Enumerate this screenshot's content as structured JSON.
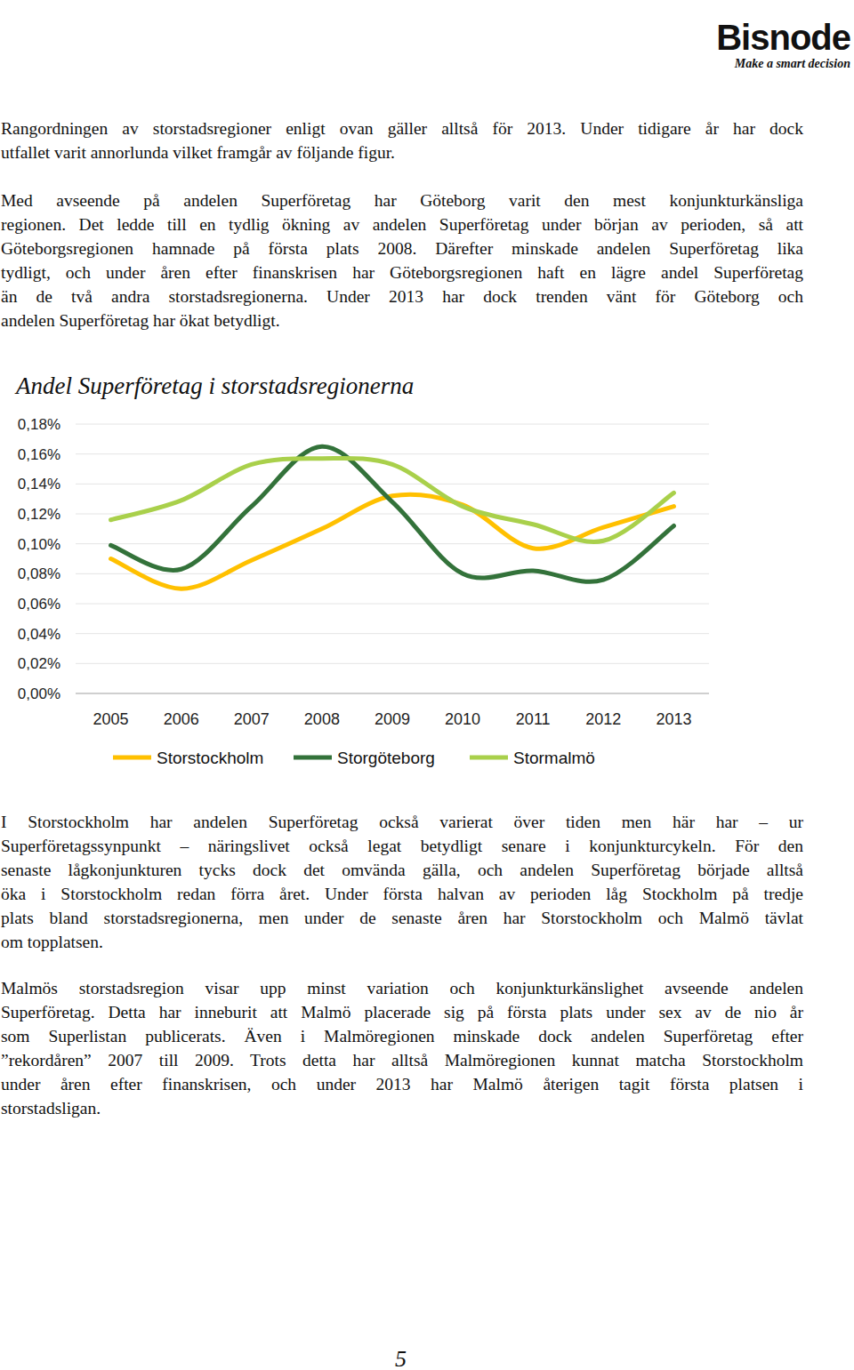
{
  "header": {
    "logo": "Bisnode",
    "tagline": "Make a smart decision"
  },
  "paragraphs": [
    [
      "Rangordningen av storstadsregioner enligt ovan gäller alltså för 2013. Under tidigare år har dock",
      "utfallet varit annorlunda vilket framgår av följande figur."
    ],
    [
      "Med avseende på andelen Superföretag har Göteborg varit den mest konjunkturkänsliga",
      "regionen. Det ledde till en tydlig ökning av andelen Superföretag under början av perioden, så att",
      "Göteborgsregionen hamnade på första plats 2008. Därefter minskade andelen Superföretag lika",
      "tydligt, och under åren efter finanskrisen har Göteborgsregionen haft en lägre andel Superföretag",
      "än de två andra storstadsregionerna. Under 2013 har dock trenden vänt för Göteborg och",
      "andelen Superföretag har ökat betydligt."
    ],
    [
      "I Storstockholm har andelen Superföretag också varierat över tiden men här har – ur",
      "Superföretagssynpunkt – näringslivet också legat betydligt senare i konjunkturcykeln. För den",
      "senaste lågkonjunkturen tycks dock det omvända gälla, och andelen Superföretag började alltså",
      "öka i Storstockholm redan förra året. Under första halvan av perioden låg Stockholm på tredje",
      "plats bland storstadsregionerna, men under de senaste åren har Storstockholm och Malmö tävlat",
      "om topplatsen."
    ],
    [
      "Malmös storstadsregion visar upp minst variation och konjunkturkänslighet avseende andelen",
      "Superföretag. Detta har inneburit att Malmö placerade sig på första plats under sex av de nio år",
      "som Superlistan publicerats. Även i Malmöregionen minskade dock andelen Superföretag efter",
      "”rekordåren” 2007 till 2009. Trots detta har alltså Malmöregionen kunnat matcha Storstockholm",
      "under åren efter finanskrisen, och under 2013 har Malmö återigen tagit första platsen i",
      "storstadsligan."
    ]
  ],
  "chart_data": {
    "type": "line",
    "title": "Andel Superföretag i storstadsregionerna",
    "categories": [
      "2005",
      "2006",
      "2007",
      "2008",
      "2009",
      "2010",
      "2011",
      "2012",
      "2013"
    ],
    "series": [
      {
        "name": "Storstockholm",
        "color": "#ffc000",
        "values": [
          0.09,
          0.07,
          0.089,
          0.11,
          0.132,
          0.126,
          0.097,
          0.111,
          0.125
        ]
      },
      {
        "name": "Storgöteborg",
        "color": "#33723a",
        "values": [
          0.099,
          0.083,
          0.125,
          0.165,
          0.128,
          0.08,
          0.082,
          0.076,
          0.112
        ]
      },
      {
        "name": "Stormalmö",
        "color": "#a9d04b",
        "values": [
          0.116,
          0.129,
          0.153,
          0.157,
          0.153,
          0.125,
          0.113,
          0.102,
          0.134
        ]
      }
    ],
    "ylim": [
      0,
      0.18
    ],
    "yticks": [
      {
        "value": 0,
        "label": "0,00%"
      },
      {
        "value": 0.02,
        "label": "0,02%"
      },
      {
        "value": 0.04,
        "label": "0,04%"
      },
      {
        "value": 0.06,
        "label": "0,06%"
      },
      {
        "value": 0.08,
        "label": "0,08%"
      },
      {
        "value": 0.1,
        "label": "0,10%"
      },
      {
        "value": 0.12,
        "label": "0,12%"
      },
      {
        "value": 0.14,
        "label": "0,14%"
      },
      {
        "value": 0.16,
        "label": "0,16%"
      },
      {
        "value": 0.18,
        "label": "0,18%"
      }
    ],
    "grid": true,
    "legend": "bottom"
  },
  "footer": {
    "page_number": "5"
  }
}
